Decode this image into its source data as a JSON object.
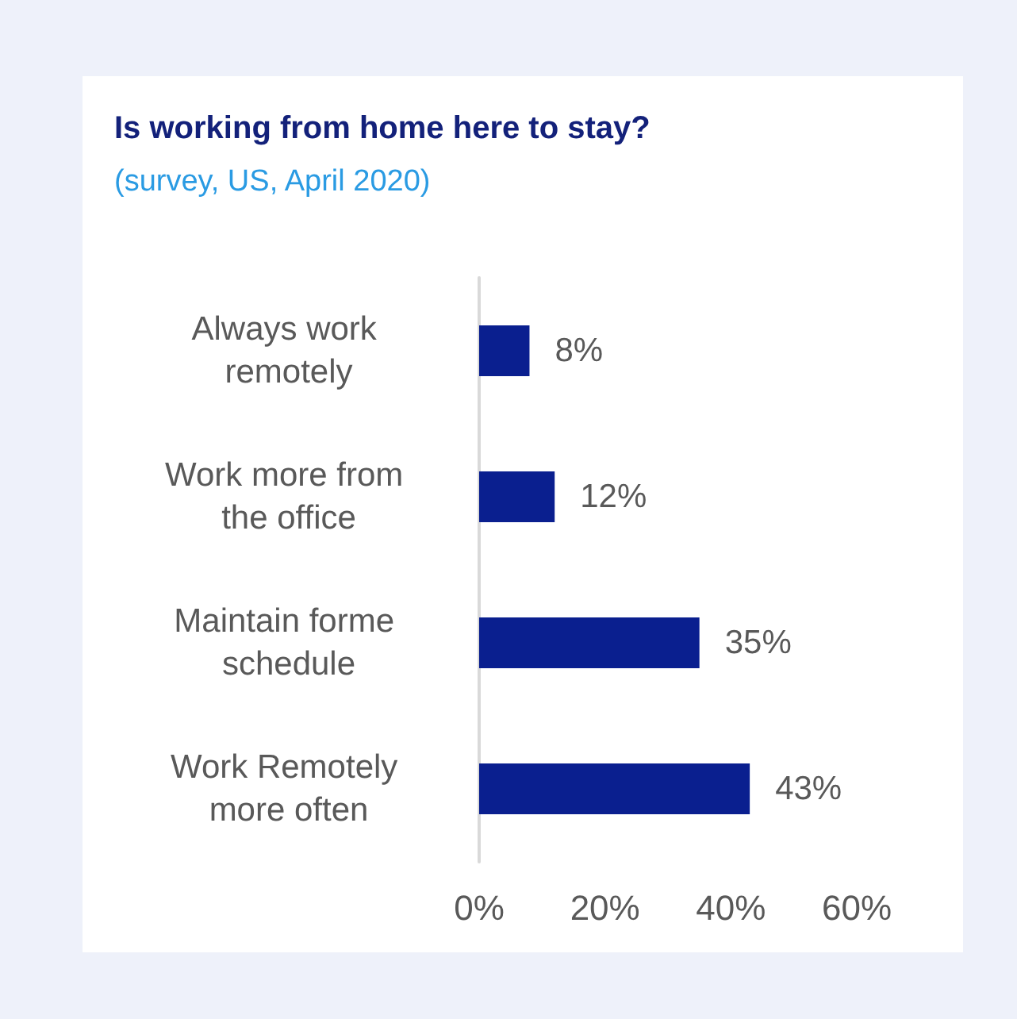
{
  "chart_data": {
    "type": "bar",
    "orientation": "horizontal",
    "title": "Is working from home here to stay?",
    "subtitle": "(survey, US, April 2020)",
    "categories": [
      "Always work remotely",
      "Work more from the office",
      "Maintain forme schedule",
      "Work Remotely more often"
    ],
    "values": [
      8,
      12,
      35,
      43
    ],
    "color": "#0a1f8f",
    "value_labels": [
      "8%",
      "12%",
      "35%",
      "43%"
    ],
    "xlim": [
      0,
      60
    ],
    "xticks": [
      {
        "value": 0,
        "label": "0%"
      },
      {
        "value": 20,
        "label": "20%"
      },
      {
        "value": 40,
        "label": "40%"
      },
      {
        "value": 60,
        "label": "60%"
      }
    ],
    "grid": false
  }
}
